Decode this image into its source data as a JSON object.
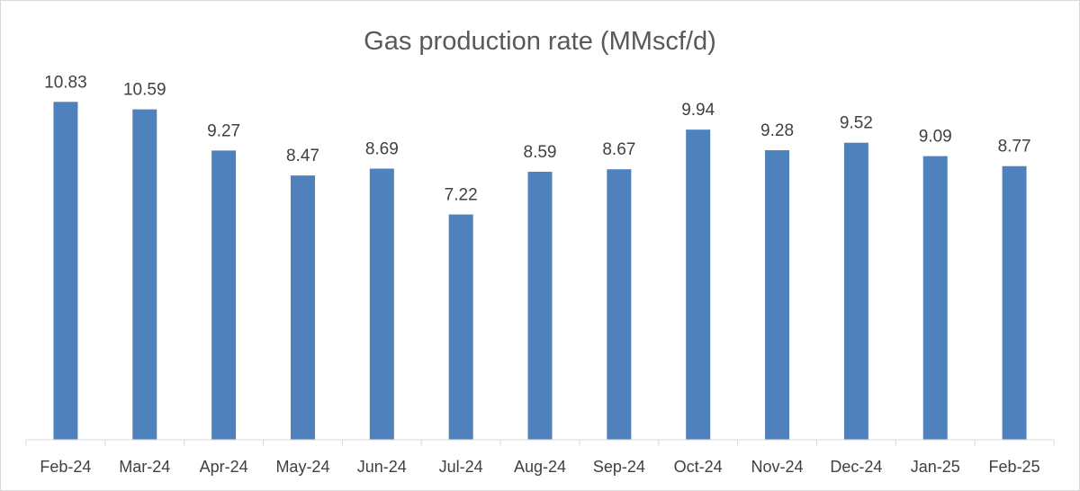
{
  "chart_data": {
    "type": "bar",
    "title": "Gas production rate (MMscf/d)",
    "xlabel": "",
    "ylabel": "",
    "categories": [
      "Feb-24",
      "Mar-24",
      "Apr-24",
      "May-24",
      "Jun-24",
      "Jul-24",
      "Aug-24",
      "Sep-24",
      "Oct-24",
      "Nov-24",
      "Dec-24",
      "Jan-25",
      "Feb-25"
    ],
    "values": [
      10.83,
      10.59,
      9.27,
      8.47,
      8.69,
      7.22,
      8.59,
      8.67,
      9.94,
      9.28,
      9.52,
      9.09,
      8.77
    ],
    "data_labels": [
      "10.83",
      "10.59",
      "9.27",
      "8.47",
      "8.69",
      "7.22",
      "8.59",
      "8.67",
      "9.94",
      "9.28",
      "9.52",
      "9.09",
      "8.77"
    ],
    "ylim": [
      0,
      13
    ],
    "y_axis_visible": false,
    "grid": false,
    "legend": "none",
    "bar_color": "#4f81bd",
    "axis_color": "#d9d9d9"
  }
}
